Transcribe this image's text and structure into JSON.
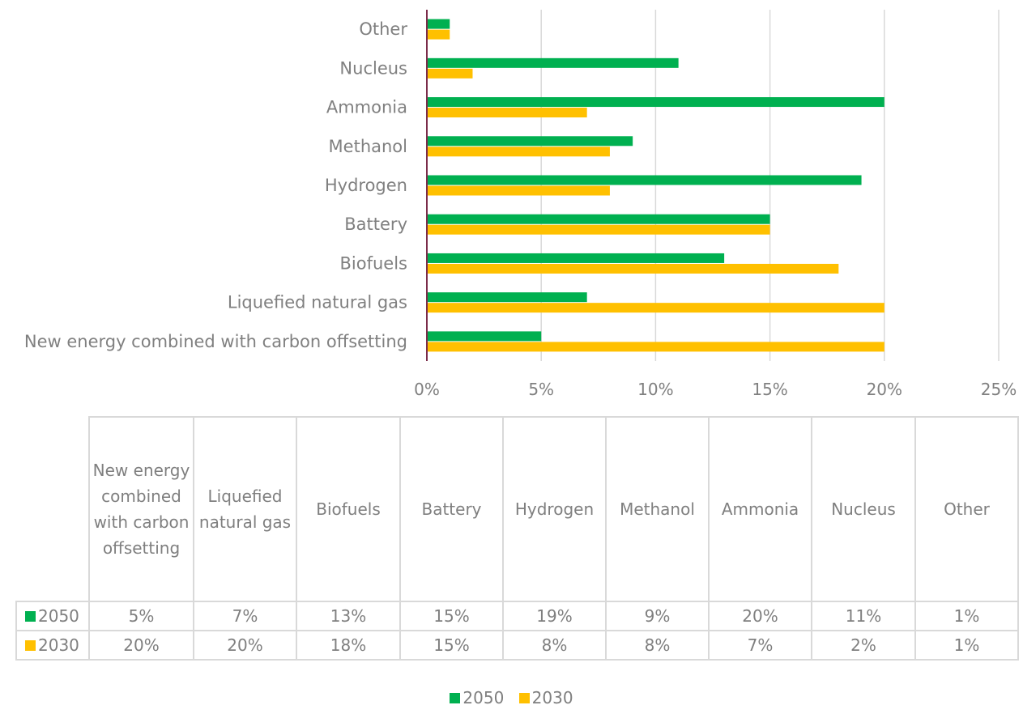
{
  "chart_data": {
    "type": "bar",
    "orientation": "horizontal",
    "categories": [
      "New energy combined with carbon offsetting",
      "Liquefied natural gas",
      "Biofuels",
      "Battery",
      "Hydrogen",
      "Methanol",
      "Ammonia",
      "Nucleus",
      "Other"
    ],
    "series": [
      {
        "name": "2050",
        "color": "#00b050",
        "values": [
          5,
          7,
          13,
          15,
          19,
          9,
          20,
          11,
          1
        ],
        "labels": [
          "5%",
          "7%",
          "13%",
          "15%",
          "19%",
          "9%",
          "20%",
          "11%",
          "1%"
        ]
      },
      {
        "name": "2030",
        "color": "#ffc000",
        "values": [
          20,
          20,
          18,
          15,
          8,
          8,
          7,
          2,
          1
        ],
        "labels": [
          "20%",
          "20%",
          "18%",
          "15%",
          "8%",
          "8%",
          "7%",
          "2%",
          "1%"
        ]
      }
    ],
    "xlim": [
      0,
      25
    ],
    "xticks": [
      "0%",
      "5%",
      "10%",
      "15%",
      "20%",
      "25%"
    ],
    "grid": true,
    "legend_position": "bottom",
    "data_table": true
  },
  "table": {
    "headers": [
      "New energy combined with carbon offsetting",
      "Liquefied natural gas",
      "Biofuels",
      "Battery",
      "Hydrogen",
      "Methanol",
      "Ammonia",
      "Nucleus",
      "Other"
    ]
  },
  "legend": {
    "items": [
      {
        "name": "2050",
        "color": "#00b050"
      },
      {
        "name": "2030",
        "color": "#ffc000"
      }
    ]
  }
}
